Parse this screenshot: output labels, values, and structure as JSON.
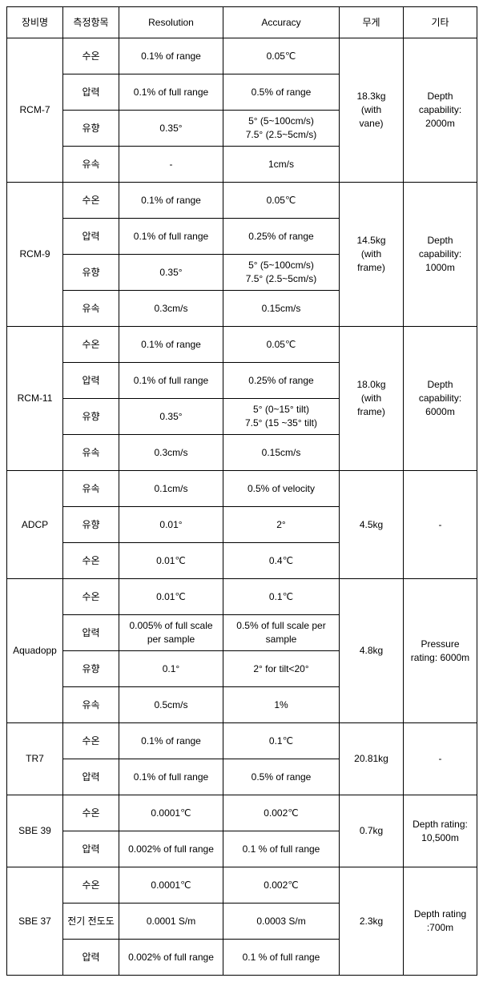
{
  "headers": [
    "장비명",
    "측정항목",
    "Resolution",
    "Accuracy",
    "무게",
    "기타"
  ],
  "colWidths": [
    "70px",
    "70px",
    "130px",
    "145px",
    "80px",
    "92px"
  ],
  "fontSize": 12,
  "borderColor": "#000000",
  "rows": [
    {
      "name": "RCM-7",
      "nameSpan": 4,
      "item": "수온",
      "res": "0.1% of range",
      "acc": "0.05℃",
      "weight": "18.3kg\n(with\nvane)",
      "weightSpan": 4,
      "etc": "Depth\ncapability:\n2000m",
      "etcSpan": 4
    },
    {
      "item": "압력",
      "res": "0.1% of full range",
      "acc": "0.5% of range"
    },
    {
      "item": "유향",
      "res": "0.35°",
      "acc": "5° (5~100cm/s)\n7.5° (2.5~5cm/s)"
    },
    {
      "item": "유속",
      "res": "-",
      "acc": "1cm/s"
    },
    {
      "name": "RCM-9",
      "nameSpan": 4,
      "item": "수온",
      "res": "0.1% of range",
      "acc": "0.05℃",
      "weight": "14.5kg\n(with\nframe)",
      "weightSpan": 4,
      "etc": "Depth\ncapability:\n1000m",
      "etcSpan": 4
    },
    {
      "item": "압력",
      "res": "0.1% of full range",
      "acc": "0.25% of range"
    },
    {
      "item": "유향",
      "res": "0.35°",
      "acc": "5° (5~100cm/s)\n7.5° (2.5~5cm/s)"
    },
    {
      "item": "유속",
      "res": "0.3cm/s",
      "acc": "0.15cm/s"
    },
    {
      "name": "RCM-11",
      "nameSpan": 4,
      "item": "수온",
      "res": "0.1% of range",
      "acc": "0.05℃",
      "weight": "18.0kg\n(with\nframe)",
      "weightSpan": 4,
      "etc": "Depth\ncapability:\n6000m",
      "etcSpan": 4
    },
    {
      "item": "압력",
      "res": "0.1% of full range",
      "acc": "0.25% of range"
    },
    {
      "item": "유향",
      "res": "0.35°",
      "acc": "5° (0~15° tilt)\n7.5° (15 ~35° tilt)"
    },
    {
      "item": "유속",
      "res": "0.3cm/s",
      "acc": "0.15cm/s"
    },
    {
      "name": "ADCP",
      "nameSpan": 3,
      "item": "유속",
      "res": "0.1cm/s",
      "acc": "0.5% of velocity",
      "weight": "4.5kg",
      "weightSpan": 3,
      "etc": "-",
      "etcSpan": 3
    },
    {
      "item": "유향",
      "res": "0.01°",
      "acc": "2°"
    },
    {
      "item": "수온",
      "res": "0.01℃",
      "acc": "0.4℃"
    },
    {
      "name": "Aquadopp",
      "nameSpan": 4,
      "item": "수온",
      "res": "0.01℃",
      "acc": "0.1℃",
      "weight": "4.8kg",
      "weightSpan": 4,
      "etc": "Pressure\nrating: 6000m",
      "etcSpan": 4
    },
    {
      "item": "압력",
      "res": "0.005% of full scale\nper sample",
      "acc": "0.5% of full scale per\nsample"
    },
    {
      "item": "유향",
      "res": "0.1°",
      "acc": "2° for tilt<20°"
    },
    {
      "item": "유속",
      "res": "0.5cm/s",
      "acc": "1%"
    },
    {
      "name": "TR7",
      "nameSpan": 2,
      "item": "수온",
      "res": "0.1% of range",
      "acc": "0.1℃",
      "weight": "20.81kg",
      "weightSpan": 2,
      "etc": "-",
      "etcSpan": 2
    },
    {
      "item": "압력",
      "res": "0.1% of full range",
      "acc": "0.5% of range"
    },
    {
      "name": "SBE 39",
      "nameSpan": 2,
      "item": "수온",
      "res": "0.0001℃",
      "acc": "0.002℃",
      "weight": "0.7kg",
      "weightSpan": 2,
      "etc": "Depth rating:\n10,500m",
      "etcSpan": 2
    },
    {
      "item": "압력",
      "res": "0.002% of full range",
      "acc": "0.1 % of full range"
    },
    {
      "name": "SBE 37",
      "nameSpan": 3,
      "item": "수온",
      "res": "0.0001℃",
      "acc": "0.002℃",
      "weight": "2.3kg",
      "weightSpan": 3,
      "etc": "Depth rating\n:700m",
      "etcSpan": 3
    },
    {
      "item": "전기 전도도",
      "res": "0.0001 S/m",
      "acc": "0.0003 S/m"
    },
    {
      "item": "압력",
      "res": "0.002% of full range",
      "acc": "0.1 % of full range"
    }
  ]
}
